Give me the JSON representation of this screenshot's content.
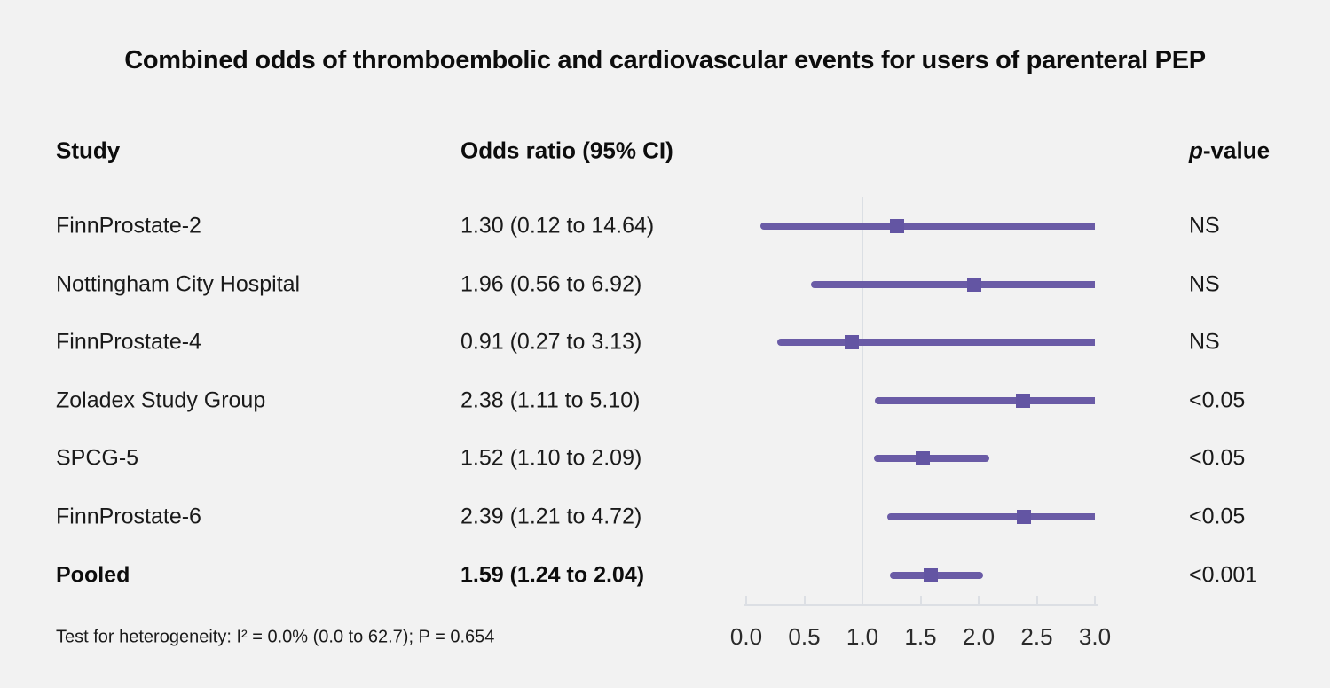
{
  "title": "Combined odds of thromboembolic and cardiovascular events for users of parenteral PEP",
  "columns": {
    "study": "Study",
    "odds_ratio": "Odds ratio (95% CI)",
    "p_italic": "p",
    "p_rest": "-value"
  },
  "footer": "Test for heterogeneity: I² = 0.0% (0.0 to 62.7); P = 0.654",
  "colors": {
    "background": "#f2f2f2",
    "ci_line": "#6a5ba6",
    "marker": "#6355a3",
    "reference_line": "#dbdfe4",
    "axis": "#dcdfe4",
    "text": "#1a1a1a"
  },
  "chart_data": {
    "type": "forest",
    "title": "Combined odds of thromboembolic and cardiovascular events for users of parenteral PEP",
    "xlim": [
      0.0,
      3.0
    ],
    "reference_value": 1.0,
    "tick_values": [
      0.0,
      0.5,
      1.0,
      1.5,
      2.0,
      2.5,
      3.0
    ],
    "tick_labels": [
      "0.0",
      "0.5",
      "1.0",
      "1.5",
      "2.0",
      "2.5",
      "3.0"
    ],
    "grid": false,
    "rows": [
      {
        "study": "FinnProstate-2",
        "or": 1.3,
        "lo": 0.12,
        "hi": 14.64,
        "or_label": "1.30 (0.12 to 14.64)",
        "p": "NS",
        "bold": false
      },
      {
        "study": "Nottingham City Hospital",
        "or": 1.96,
        "lo": 0.56,
        "hi": 6.92,
        "or_label": "1.96 (0.56 to 6.92)",
        "p": "NS",
        "bold": false
      },
      {
        "study": "FinnProstate-4",
        "or": 0.91,
        "lo": 0.27,
        "hi": 3.13,
        "or_label": "0.91 (0.27 to 3.13)",
        "p": "NS",
        "bold": false
      },
      {
        "study": "Zoladex Study Group",
        "or": 2.38,
        "lo": 1.11,
        "hi": 5.1,
        "or_label": "2.38 (1.11 to 5.10)",
        "p": "<0.05",
        "bold": false
      },
      {
        "study": "SPCG-5",
        "or": 1.52,
        "lo": 1.1,
        "hi": 2.09,
        "or_label": "1.52 (1.10 to 2.09)",
        "p": "<0.05",
        "bold": false
      },
      {
        "study": "FinnProstate-6",
        "or": 2.39,
        "lo": 1.21,
        "hi": 4.72,
        "or_label": "2.39 (1.21 to 4.72)",
        "p": "<0.05",
        "bold": false
      },
      {
        "study": "Pooled",
        "or": 1.59,
        "lo": 1.24,
        "hi": 2.04,
        "or_label": "1.59 (1.24 to 2.04)",
        "p": "<0.001",
        "bold": true
      }
    ]
  }
}
